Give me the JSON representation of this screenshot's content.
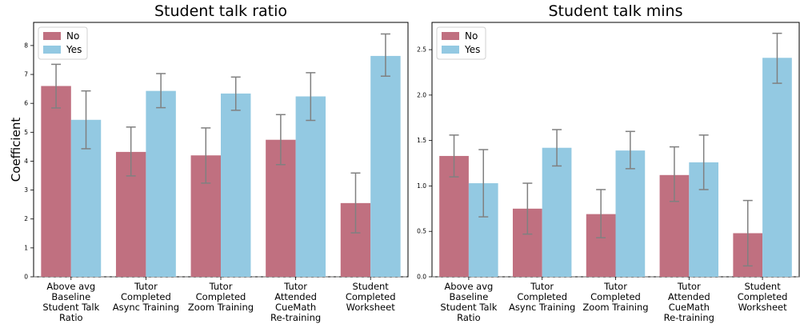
{
  "colors": {
    "no": "#c07080",
    "yes": "#93c9e2",
    "error_bar": "#808080"
  },
  "chart_data": [
    {
      "type": "bar",
      "title": "Student talk ratio",
      "ylabel": "Coefficient",
      "xlabel": "",
      "ylim": [
        0,
        8.8
      ],
      "yticks": [
        0,
        1,
        2,
        3,
        4,
        5,
        6,
        7,
        8
      ],
      "grid": false,
      "legend": "top-left",
      "categories": [
        [
          "Above avg",
          "Baseline",
          "Student Talk",
          "Ratio"
        ],
        [
          "Tutor",
          "Completed",
          "Async Training"
        ],
        [
          "Tutor",
          "Completed",
          "Zoom Training"
        ],
        [
          "Tutor",
          "Attended",
          "CueMath",
          "Re-training"
        ],
        [
          "Student",
          "Completed",
          "Worksheet"
        ]
      ],
      "series": [
        {
          "name": "No",
          "values": [
            6.6,
            4.32,
            4.2,
            4.74,
            2.55
          ],
          "err_low": [
            5.84,
            3.49,
            3.24,
            3.88,
            1.52
          ],
          "err_high": [
            7.35,
            5.18,
            5.15,
            5.61,
            3.59
          ]
        },
        {
          "name": "Yes",
          "values": [
            5.43,
            6.43,
            6.34,
            6.24,
            7.64
          ],
          "err_low": [
            4.43,
            5.85,
            5.76,
            5.41,
            6.94
          ],
          "err_high": [
            6.43,
            7.03,
            6.91,
            7.06,
            8.4
          ]
        }
      ]
    },
    {
      "type": "bar",
      "title": "Student talk mins",
      "ylabel": "",
      "xlabel": "",
      "ylim": [
        0,
        2.8
      ],
      "yticks": [
        0.0,
        0.5,
        1.0,
        1.5,
        2.0,
        2.5
      ],
      "grid": false,
      "legend": "top-left",
      "categories": [
        [
          "Above avg",
          "Baseline",
          "Student Talk",
          "Ratio"
        ],
        [
          "Tutor",
          "Completed",
          "Async Training"
        ],
        [
          "Tutor",
          "Completed",
          "Zoom Training"
        ],
        [
          "Tutor",
          "Attended",
          "CueMath",
          "Re-training"
        ],
        [
          "Student",
          "Completed",
          "Worksheet"
        ]
      ],
      "series": [
        {
          "name": "No",
          "values": [
            1.33,
            0.75,
            0.69,
            1.12,
            0.48
          ],
          "err_low": [
            1.1,
            0.47,
            0.43,
            0.83,
            0.12
          ],
          "err_high": [
            1.56,
            1.03,
            0.96,
            1.43,
            0.84
          ]
        },
        {
          "name": "Yes",
          "values": [
            1.03,
            1.42,
            1.39,
            1.26,
            2.41
          ],
          "err_low": [
            0.66,
            1.22,
            1.19,
            0.96,
            2.13
          ],
          "err_high": [
            1.4,
            1.62,
            1.6,
            1.56,
            2.68
          ]
        }
      ]
    }
  ]
}
